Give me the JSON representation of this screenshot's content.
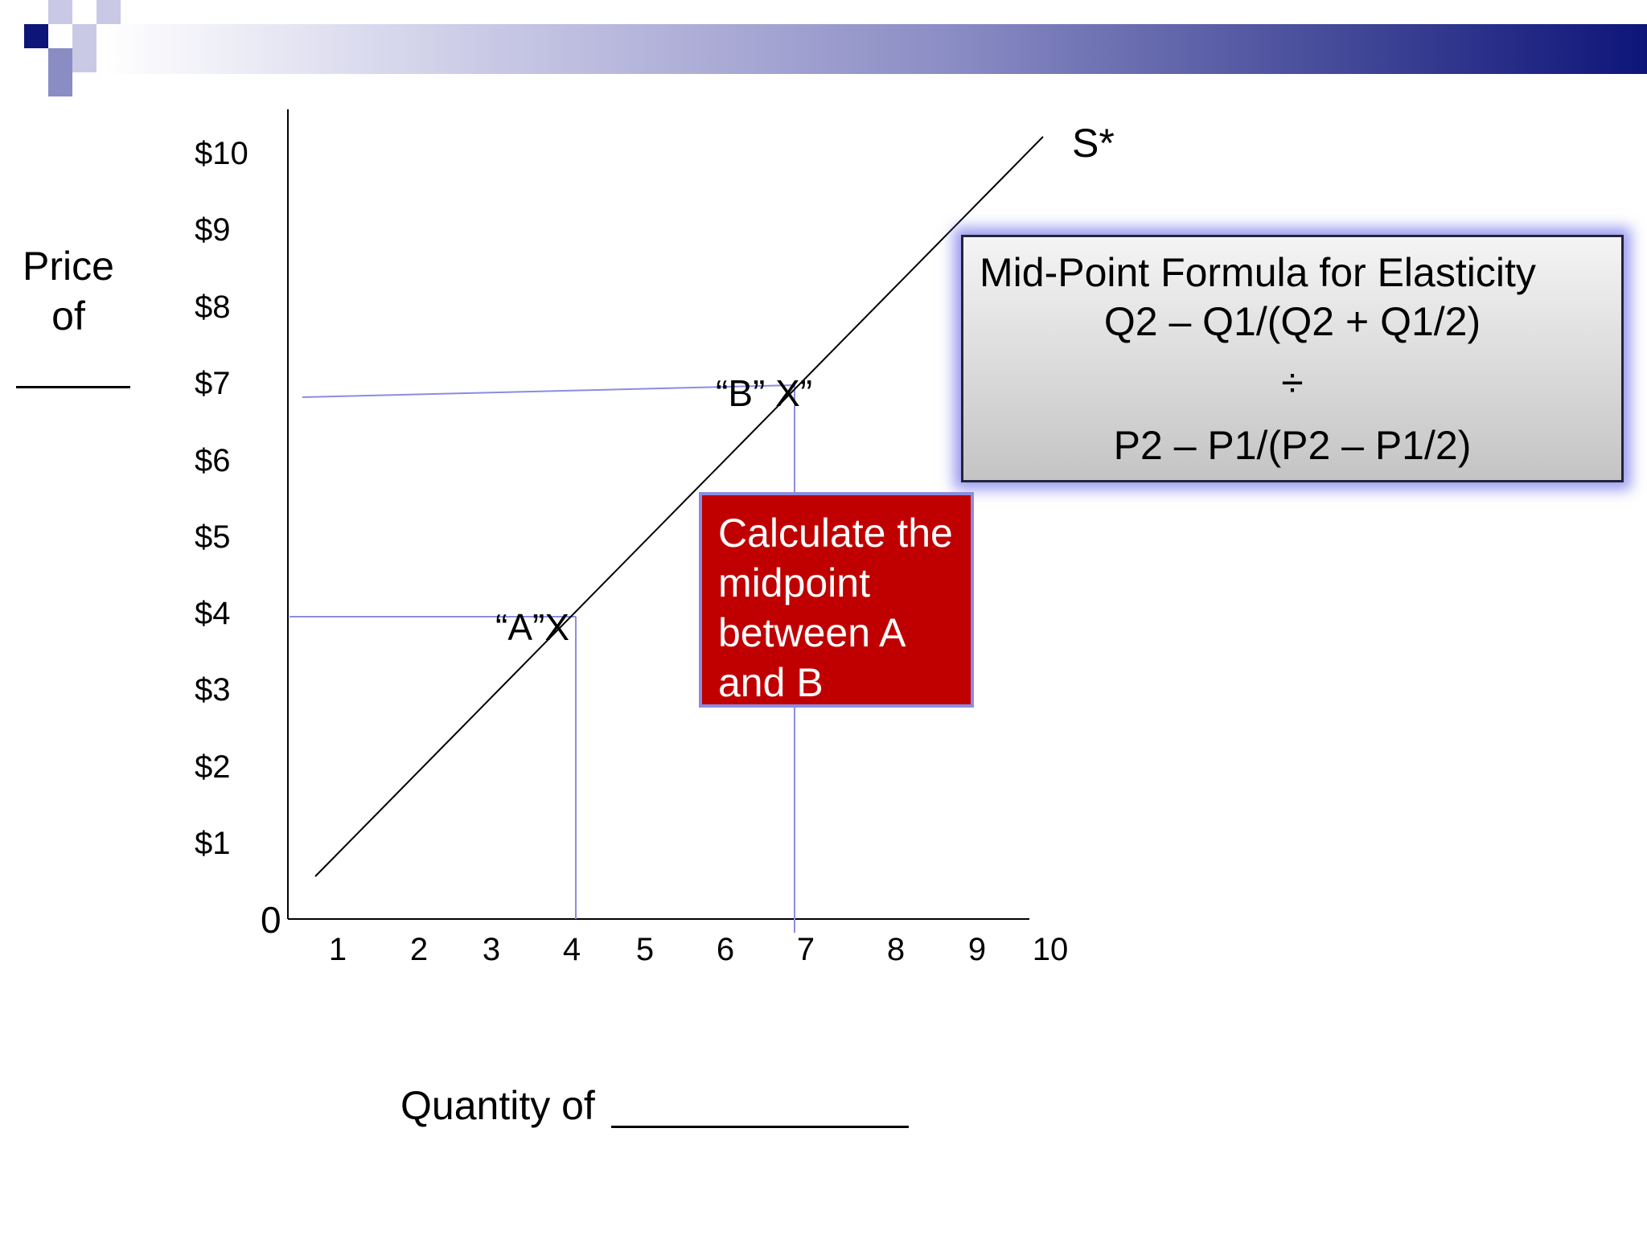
{
  "chart_data": {
    "type": "line",
    "ylabel": "Price of",
    "xlabel": "Quantity of",
    "x_ticks": [
      "1",
      "2",
      "3",
      "4",
      "5",
      "6",
      "7",
      "8",
      "9",
      "10"
    ],
    "y_ticks": [
      "$1",
      "$2",
      "$3",
      "$4",
      "$5",
      "$6",
      "$7",
      "$8",
      "$9",
      "$10"
    ],
    "origin_label": "0",
    "xlim": [
      0,
      10
    ],
    "ylim": [
      0,
      10
    ],
    "grid": false,
    "series": [
      {
        "name": "S*",
        "x": [
          0.3,
          9.3
        ],
        "y": [
          0.5,
          10
        ]
      }
    ],
    "points": [
      {
        "label": "“A”X",
        "x": 4,
        "y": 4
      },
      {
        "label": "“B” X”",
        "x": 7,
        "y": 7
      }
    ]
  },
  "formula_box": {
    "title": "Mid-Point Formula for Elasticity",
    "numerator": "Q2 – Q1/(Q2 + Q1/2)",
    "operator": "÷",
    "denominator": "P2 – P1/(P2 – P1/2)"
  },
  "callout": {
    "lines": [
      "Calculate the",
      "midpoint",
      "between A",
      "and B"
    ]
  },
  "colors": {
    "banner_dark": "#0d1579",
    "guide_line": "#8c8ce0",
    "callout_bg": "#c00000",
    "formula_glow": "#7a7aeb"
  }
}
